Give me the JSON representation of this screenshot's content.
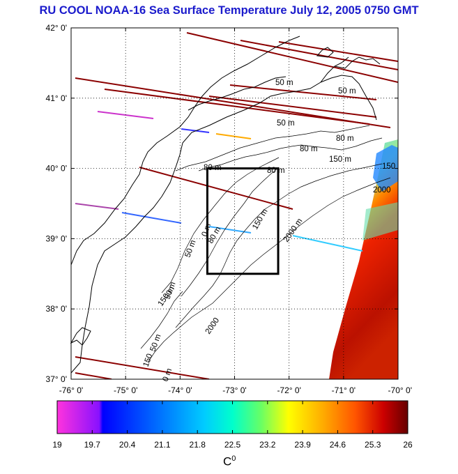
{
  "title": "RU COOL  NOAA-16 Sea Surface Temperature July 12, 2005 0750 GMT",
  "map": {
    "lat_ticks": [
      {
        "deg": 42,
        "label": "42° 0'"
      },
      {
        "deg": 41,
        "label": "41° 0'"
      },
      {
        "deg": 40,
        "label": "40° 0'"
      },
      {
        "deg": 39,
        "label": "39° 0'"
      },
      {
        "deg": 38,
        "label": "38° 0'"
      },
      {
        "deg": 37,
        "label": "37° 0'"
      }
    ],
    "lon_ticks": [
      {
        "deg": -76,
        "label": "-76° 0'"
      },
      {
        "deg": -75,
        "label": "-75° 0'"
      },
      {
        "deg": -74,
        "label": "-74° 0'"
      },
      {
        "deg": -73,
        "label": "-73° 0'"
      },
      {
        "deg": -72,
        "label": "-72° 0'"
      },
      {
        "deg": -71,
        "label": "-71° 0'"
      },
      {
        "deg": -70,
        "label": "-70° 0'"
      }
    ],
    "contour_labels": [
      "50 m",
      "50 m",
      "50 m",
      "80 m",
      "80 m",
      "80 m",
      "80 m",
      "150 m",
      "150 m",
      "150 m",
      "2000 m",
      "2000",
      "2000",
      "50 m",
      "80 m",
      "150",
      "50 m",
      "50 m",
      "0 m",
      "150",
      "0 m"
    ],
    "box": {
      "lon_min": -73.5,
      "lon_max": -72.2,
      "lat_min": 38.5,
      "lat_max": 40.0
    }
  },
  "colorbar": {
    "unit": "C",
    "unit_sup": "0",
    "ticks": [
      "19",
      "19.7",
      "20.4",
      "21.1",
      "21.8",
      "22.5",
      "23.2",
      "23.9",
      "24.6",
      "25.3",
      "26"
    ],
    "colors": [
      "#ff33dd",
      "#8811ff",
      "#0000ff",
      "#0077ff",
      "#00ccff",
      "#00ffcc",
      "#66ff66",
      "#ffff00",
      "#ffaa00",
      "#ff5500",
      "#cc0000",
      "#660000"
    ]
  }
}
